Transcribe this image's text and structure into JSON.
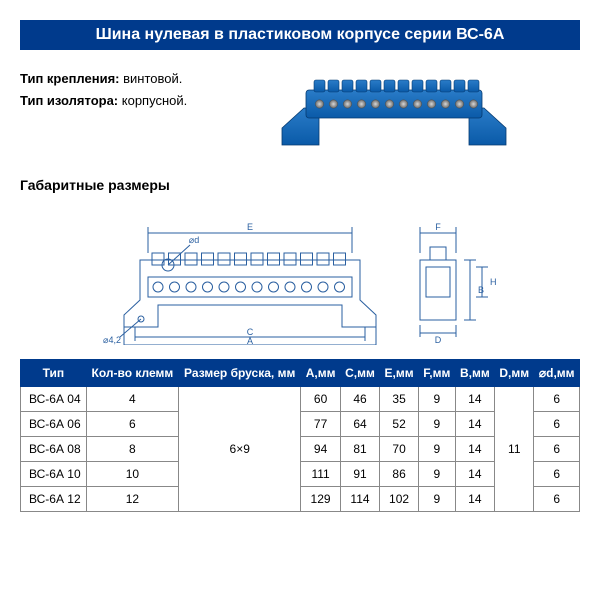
{
  "title": "Шина нулевая в пластиковом корпусе серии ВС-6А",
  "specs": {
    "mount_label": "Тип крепления:",
    "mount_value": "винтовой.",
    "insulator_label": "Тип изолятора:",
    "insulator_value": "корпусной."
  },
  "dim_heading": "Габаритные размеры",
  "table": {
    "columns": [
      "Тип",
      "Кол-во клемм",
      "Размер бруска, мм",
      "А,мм",
      "С,мм",
      "Е,мм",
      "F,мм",
      "В,мм",
      "D,мм",
      "⌀d,мм"
    ],
    "bar_size": "6×9",
    "d_mm": "11",
    "rows": [
      {
        "type": "ВС-6А 04",
        "terminals": "4",
        "a": "60",
        "c": "46",
        "e": "35",
        "f": "9",
        "b": "14",
        "d": "6"
      },
      {
        "type": "ВС-6А 06",
        "terminals": "6",
        "a": "77",
        "c": "64",
        "e": "52",
        "f": "9",
        "b": "14",
        "d": "6"
      },
      {
        "type": "ВС-6А 08",
        "terminals": "8",
        "a": "94",
        "c": "81",
        "e": "70",
        "f": "9",
        "b": "14",
        "d": "6"
      },
      {
        "type": "ВС-6А 10",
        "terminals": "10",
        "a": "111",
        "c": "91",
        "e": "86",
        "f": "9",
        "b": "14",
        "d": "6"
      },
      {
        "type": "ВС-6А 12",
        "terminals": "12",
        "a": "129",
        "c": "114",
        "e": "102",
        "f": "9",
        "b": "14",
        "d": "6"
      }
    ],
    "header_bg": "#003a8c",
    "header_fg": "#ffffff",
    "border_color": "#888888",
    "fontsize": 12
  },
  "product_svg": {
    "body_color": "#0a5aa8",
    "body_hilite": "#2a7cc8",
    "screw_color": "#7a7a7a",
    "screw_light": "#b8b8b8"
  },
  "diagram_svg": {
    "line_color": "#2a5fa0",
    "line_width": 1,
    "labels": {
      "A": "A",
      "B": "B",
      "C": "C",
      "D": "D",
      "E": "E",
      "F": "F",
      "H": "H",
      "d": "⌀d",
      "hole": "⌀4,2"
    }
  }
}
